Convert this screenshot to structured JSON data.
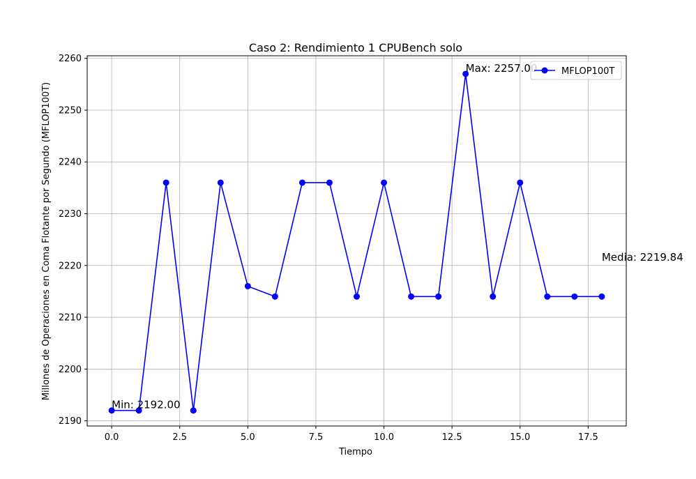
{
  "chart_data": {
    "type": "line",
    "title": "Caso 2: Rendimiento 1 CPUBench solo",
    "xlabel": "Tiempo",
    "ylabel": "Millones de Operaciones en Coma Flotante por Segundo (MFLOP100T)",
    "xlim": [
      -0.9,
      18.9
    ],
    "ylim": [
      2189,
      2260.5
    ],
    "xticks": [
      0.0,
      2.5,
      5.0,
      7.5,
      10.0,
      12.5,
      15.0,
      17.5
    ],
    "xtick_labels": [
      "0.0",
      "2.5",
      "5.0",
      "7.5",
      "10.0",
      "12.5",
      "15.0",
      "17.5"
    ],
    "yticks": [
      2190,
      2200,
      2210,
      2220,
      2230,
      2240,
      2250,
      2260
    ],
    "ytick_labels": [
      "2190",
      "2200",
      "2210",
      "2220",
      "2230",
      "2240",
      "2250",
      "2260"
    ],
    "grid": true,
    "legend_position": "upper right",
    "series": [
      {
        "name": "MFLOP100T",
        "color": "#0000ff",
        "marker": "circle",
        "x": [
          0,
          1,
          2,
          3,
          4,
          5,
          6,
          7,
          8,
          9,
          10,
          11,
          12,
          13,
          14,
          15,
          16,
          17,
          18
        ],
        "y": [
          2192,
          2192,
          2236,
          2192,
          2236,
          2216,
          2214,
          2236,
          2236,
          2214,
          2236,
          2214,
          2214,
          2257,
          2214,
          2236,
          2214,
          2214,
          2214
        ]
      }
    ],
    "annotations": [
      {
        "text": "Min: 2192.00",
        "x": 0,
        "y": 2192
      },
      {
        "text": "Max: 2257.00",
        "x": 13,
        "y": 2257
      },
      {
        "text": "Media: 2219.84",
        "x": 18,
        "y": 2220.5
      }
    ]
  }
}
